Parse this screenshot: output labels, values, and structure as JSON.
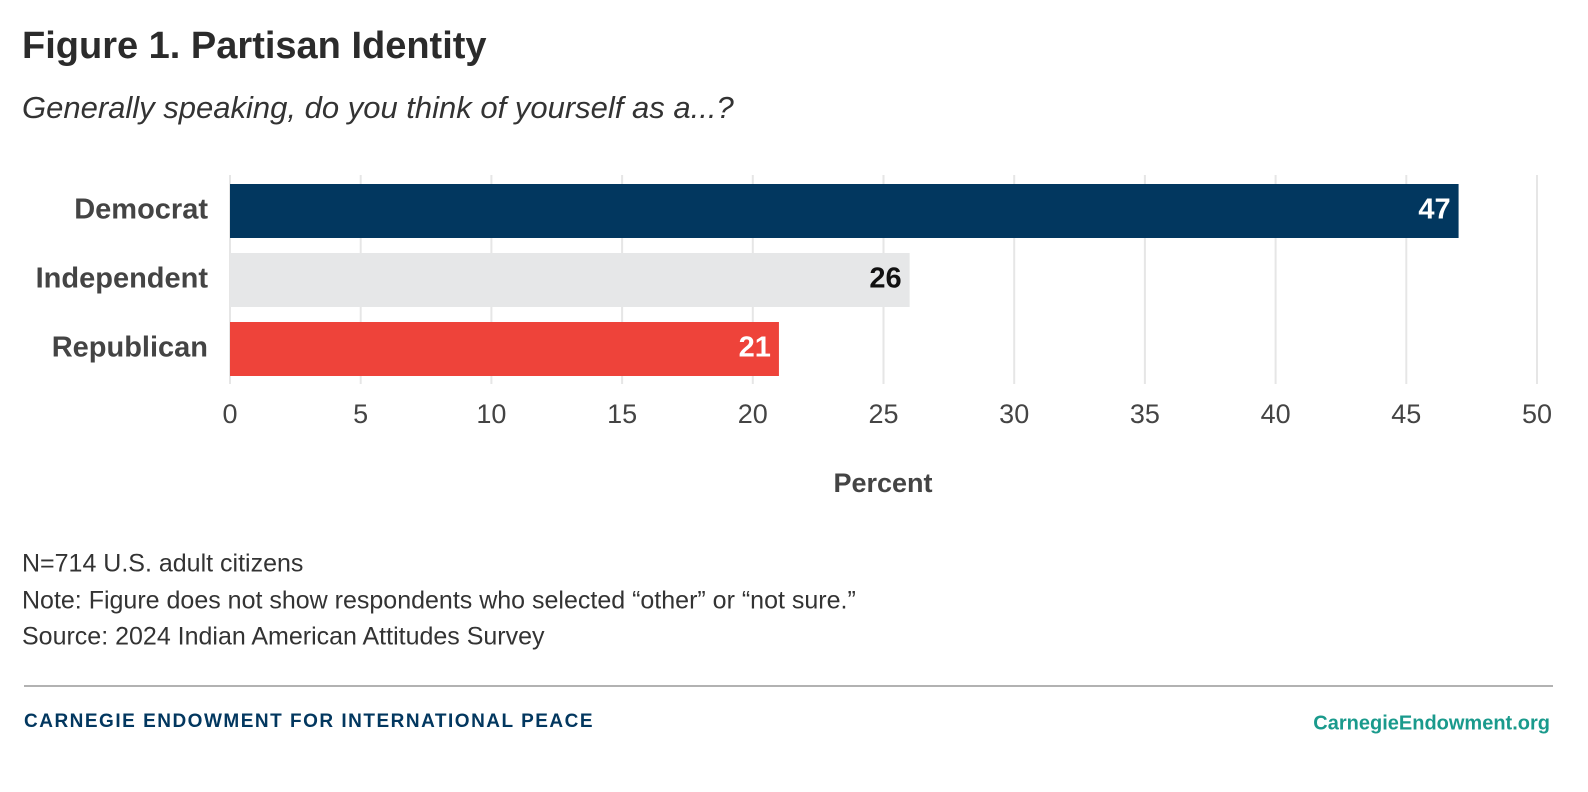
{
  "chart_data": {
    "type": "bar",
    "orientation": "horizontal",
    "title": "Figure 1. Partisan Identity",
    "subtitle": "Generally speaking, do you think of yourself as a...?",
    "categories": [
      "Democrat",
      "Independent",
      "Republican"
    ],
    "values": [
      47,
      26,
      21
    ],
    "colors": [
      "#02375f",
      "#e6e7e8",
      "#ee433a"
    ],
    "label_colors": [
      "#ffffff",
      "#111111",
      "#ffffff"
    ],
    "xlabel": "Percent",
    "xlim": [
      0,
      50
    ],
    "xticks": [
      0,
      5,
      10,
      15,
      20,
      25,
      30,
      35,
      40,
      45,
      50
    ],
    "grid": true
  },
  "notes": [
    "N=714 U.S. adult citizens",
    "Note: Figure does not show respondents who selected “other” or “not sure.”",
    "Source: 2024 Indian American Attitudes Survey"
  ],
  "footer": {
    "organization": "CARNEGIE ENDOWMENT FOR INTERNATIONAL PEACE",
    "website": "CarnegieEndowment.org"
  }
}
